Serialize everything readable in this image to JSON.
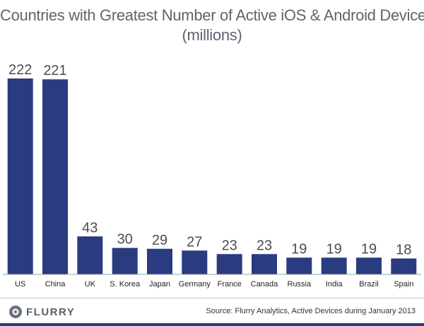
{
  "chart_data": {
    "type": "bar",
    "title": "Countries with Greatest Number of Active iOS & Android Devices",
    "subtitle": "(millions)",
    "categories": [
      "US",
      "China",
      "UK",
      "S. Korea",
      "Japan",
      "Germany",
      "France",
      "Canada",
      "Russia",
      "India",
      "Brazil",
      "Spain"
    ],
    "values": [
      222,
      221,
      43,
      30,
      29,
      27,
      23,
      23,
      19,
      19,
      19,
      18
    ],
    "value_labels": [
      "222",
      "221",
      "43",
      "30",
      "29",
      "27",
      "23",
      "23",
      "19",
      "19",
      "19",
      "18"
    ],
    "xlabel": "",
    "ylabel": "",
    "ylim": [
      0,
      222
    ],
    "grid": false,
    "bar_color": "#2a3b7f"
  },
  "footer": {
    "brand": "FLURRY",
    "source": "Source: Flurry Analytics, Active Devices during January 2013"
  },
  "colors": {
    "accent": "#2a3b7f",
    "title": "#5f6470"
  }
}
